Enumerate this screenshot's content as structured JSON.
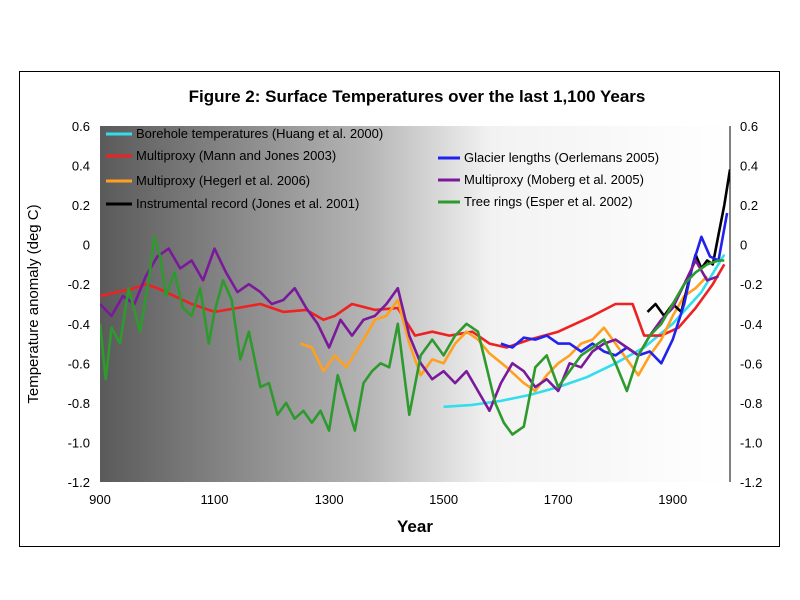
{
  "chart_data": {
    "type": "line",
    "title": "Figure 2: Surface Temperatures over the last 1,100 Years",
    "xlabel": "Year",
    "ylabel": "Temperature anomaly (deg C)",
    "xlim": [
      900,
      2000
    ],
    "ylim": [
      -1.2,
      0.6
    ],
    "xticks": [
      900,
      1100,
      1300,
      1500,
      1700,
      1900
    ],
    "yticks": [
      0.6,
      0.4,
      0.2,
      0,
      -0.2,
      -0.4,
      -0.6,
      -0.8,
      -1.0,
      -1.2
    ],
    "ytick_labels": [
      "0.6",
      "0.4",
      "0.2",
      "0",
      "-0.2",
      "-0.4",
      "-0.6",
      "-0.8",
      "-1.0",
      "-1.2"
    ],
    "series": [
      {
        "name": "Borehole temperatures (Huang et al. 2000)",
        "color": "#33ddee",
        "x": [
          1500,
          1550,
          1600,
          1650,
          1700,
          1750,
          1800,
          1850,
          1900,
          1950,
          1990
        ],
        "y": [
          -0.82,
          -0.81,
          -0.79,
          -0.76,
          -0.72,
          -0.67,
          -0.6,
          -0.52,
          -0.4,
          -0.24,
          -0.05
        ]
      },
      {
        "name": "Multiproxy (Mann and Jones 2003)",
        "color": "#ee2222",
        "x": [
          900,
          930,
          960,
          980,
          1000,
          1030,
          1060,
          1100,
          1140,
          1180,
          1220,
          1260,
          1290,
          1310,
          1340,
          1380,
          1420,
          1450,
          1480,
          1510,
          1550,
          1580,
          1610,
          1650,
          1700,
          1730,
          1760,
          1800,
          1830,
          1850,
          1880,
          1910,
          1940,
          1970,
          1990
        ],
        "y": [
          -0.26,
          -0.24,
          -0.22,
          -0.2,
          -0.22,
          -0.26,
          -0.3,
          -0.34,
          -0.32,
          -0.3,
          -0.34,
          -0.33,
          -0.38,
          -0.36,
          -0.3,
          -0.33,
          -0.32,
          -0.46,
          -0.44,
          -0.46,
          -0.44,
          -0.5,
          -0.52,
          -0.48,
          -0.44,
          -0.4,
          -0.36,
          -0.3,
          -0.3,
          -0.46,
          -0.46,
          -0.42,
          -0.32,
          -0.2,
          -0.1
        ]
      },
      {
        "name": "Multiproxy (Hegerl et al. 2006)",
        "color": "#ffa020",
        "x": [
          1250,
          1270,
          1290,
          1310,
          1330,
          1360,
          1380,
          1400,
          1420,
          1440,
          1460,
          1480,
          1500,
          1520,
          1540,
          1560,
          1580,
          1610,
          1640,
          1660,
          1680,
          1700,
          1720,
          1740,
          1760,
          1780,
          1800,
          1820,
          1840,
          1860,
          1880,
          1900,
          1920,
          1940,
          1960
        ],
        "y": [
          -0.5,
          -0.52,
          -0.64,
          -0.56,
          -0.62,
          -0.48,
          -0.38,
          -0.36,
          -0.28,
          -0.5,
          -0.66,
          -0.58,
          -0.6,
          -0.5,
          -0.44,
          -0.48,
          -0.55,
          -0.62,
          -0.7,
          -0.74,
          -0.66,
          -0.6,
          -0.56,
          -0.5,
          -0.48,
          -0.42,
          -0.5,
          -0.58,
          -0.66,
          -0.56,
          -0.48,
          -0.36,
          -0.26,
          -0.22,
          -0.16
        ]
      },
      {
        "name": "Instrumental record (Jones et al. 2001)",
        "color": "#000000",
        "x": [
          1856,
          1870,
          1885,
          1900,
          1915,
          1930,
          1940,
          1950,
          1960,
          1970,
          1980,
          1990,
          2000
        ],
        "y": [
          -0.34,
          -0.3,
          -0.36,
          -0.3,
          -0.34,
          -0.16,
          -0.05,
          -0.12,
          -0.08,
          -0.1,
          0.05,
          0.2,
          0.38
        ]
      },
      {
        "name": "Glacier lengths (Oerlemans 2005)",
        "color": "#2222ee",
        "x": [
          1600,
          1620,
          1640,
          1660,
          1680,
          1700,
          1720,
          1740,
          1760,
          1780,
          1800,
          1820,
          1840,
          1860,
          1880,
          1900,
          1920,
          1935,
          1950,
          1965,
          1980,
          1995
        ],
        "y": [
          -0.5,
          -0.52,
          -0.47,
          -0.48,
          -0.46,
          -0.5,
          -0.5,
          -0.54,
          -0.5,
          -0.54,
          -0.56,
          -0.52,
          -0.56,
          -0.54,
          -0.6,
          -0.48,
          -0.3,
          -0.1,
          0.04,
          -0.06,
          -0.08,
          0.16
        ]
      },
      {
        "name": "Multiproxy (Moberg et al. 2005)",
        "color": "#7a1a9a",
        "x": [
          900,
          920,
          940,
          960,
          980,
          1000,
          1020,
          1040,
          1060,
          1080,
          1100,
          1120,
          1140,
          1160,
          1180,
          1200,
          1220,
          1240,
          1260,
          1280,
          1300,
          1320,
          1340,
          1360,
          1380,
          1400,
          1420,
          1440,
          1460,
          1480,
          1500,
          1520,
          1540,
          1560,
          1580,
          1600,
          1620,
          1640,
          1660,
          1680,
          1700,
          1720,
          1740,
          1760,
          1780,
          1800,
          1820,
          1840,
          1860,
          1880,
          1900,
          1920,
          1940,
          1960,
          1980
        ],
        "y": [
          -0.3,
          -0.36,
          -0.26,
          -0.3,
          -0.16,
          -0.06,
          -0.02,
          -0.12,
          -0.08,
          -0.18,
          -0.02,
          -0.14,
          -0.24,
          -0.2,
          -0.24,
          -0.3,
          -0.28,
          -0.22,
          -0.32,
          -0.4,
          -0.52,
          -0.38,
          -0.46,
          -0.38,
          -0.36,
          -0.3,
          -0.22,
          -0.46,
          -0.6,
          -0.68,
          -0.64,
          -0.7,
          -0.64,
          -0.74,
          -0.84,
          -0.7,
          -0.6,
          -0.64,
          -0.72,
          -0.68,
          -0.74,
          -0.6,
          -0.62,
          -0.54,
          -0.5,
          -0.48,
          -0.52,
          -0.56,
          -0.46,
          -0.38,
          -0.32,
          -0.2,
          -0.08,
          -0.18,
          -0.16
        ]
      },
      {
        "name": "Tree rings (Esper et al. 2002)",
        "color": "#2e9a2e",
        "x": [
          900,
          910,
          920,
          935,
          950,
          970,
          985,
          995,
          1005,
          1015,
          1030,
          1045,
          1060,
          1075,
          1090,
          1100,
          1115,
          1130,
          1145,
          1160,
          1180,
          1195,
          1210,
          1225,
          1240,
          1255,
          1270,
          1285,
          1300,
          1315,
          1330,
          1345,
          1360,
          1375,
          1390,
          1405,
          1420,
          1440,
          1460,
          1480,
          1500,
          1520,
          1540,
          1560,
          1575,
          1590,
          1605,
          1620,
          1640,
          1660,
          1680,
          1700,
          1720,
          1740,
          1760,
          1780,
          1800,
          1820,
          1840,
          1860,
          1880,
          1900,
          1920,
          1940,
          1960,
          1980,
          1990
        ],
        "y": [
          -0.4,
          -0.68,
          -0.42,
          -0.5,
          -0.22,
          -0.44,
          -0.18,
          0.04,
          -0.06,
          -0.26,
          -0.14,
          -0.32,
          -0.36,
          -0.22,
          -0.5,
          -0.34,
          -0.18,
          -0.28,
          -0.58,
          -0.44,
          -0.72,
          -0.7,
          -0.86,
          -0.8,
          -0.88,
          -0.84,
          -0.9,
          -0.84,
          -0.94,
          -0.66,
          -0.8,
          -0.94,
          -0.7,
          -0.64,
          -0.6,
          -0.62,
          -0.4,
          -0.86,
          -0.56,
          -0.48,
          -0.56,
          -0.46,
          -0.4,
          -0.44,
          -0.62,
          -0.8,
          -0.9,
          -0.96,
          -0.92,
          -0.62,
          -0.56,
          -0.72,
          -0.64,
          -0.56,
          -0.52,
          -0.48,
          -0.6,
          -0.74,
          -0.56,
          -0.46,
          -0.4,
          -0.3,
          -0.2,
          -0.14,
          -0.1,
          -0.08,
          -0.08
        ]
      }
    ]
  }
}
